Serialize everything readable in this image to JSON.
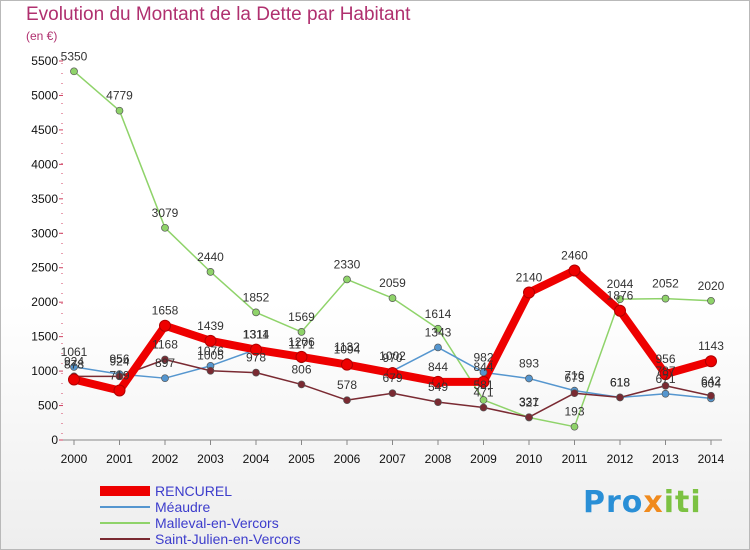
{
  "header": {
    "title": "Evolution du Montant de la Dette par Habitant",
    "unit": "(en €)"
  },
  "brand": {
    "logo_part1": "Pro",
    "logo_part2": "x",
    "logo_part3": "iti"
  },
  "chart_data": {
    "type": "line",
    "x": [
      "2000",
      "2001",
      "2002",
      "2003",
      "2004",
      "2005",
      "2006",
      "2007",
      "2008",
      "2009",
      "2010",
      "2011",
      "2012",
      "2013",
      "2014"
    ],
    "yticks": [
      "0",
      "500",
      "1000",
      "1500",
      "2000",
      "2500",
      "3000",
      "3500",
      "4000",
      "4500",
      "5000",
      "5500"
    ],
    "ylim": [
      0,
      5500
    ],
    "grid": false,
    "legend": "bottom-left",
    "series": [
      {
        "name": "RENCUREL",
        "color": "#ee0000",
        "values": [
          878,
          719,
          1658,
          1439,
          1311,
          1206,
          1094,
          970,
          844,
          844,
          2140,
          2460,
          1876,
          956,
          1143
        ],
        "labels": [
          "878",
          "719",
          "1658",
          "1439",
          "1311",
          "1206",
          "1094",
          "970",
          "844",
          "844",
          "2140",
          "2460",
          "1876",
          "956",
          "1143"
        ]
      },
      {
        "name": "Méaudre",
        "color": "#5596cf",
        "values": [
          1061,
          956,
          897,
          1076,
          1314,
          1171,
          1132,
          1002,
          1343,
          982,
          893,
          716,
          618,
          671,
          604
        ],
        "labels": [
          "1061",
          "956",
          "897",
          "1076",
          "1314",
          "1171",
          "1132",
          "1002",
          "1343",
          "982",
          "893",
          "716",
          "618",
          "671",
          "604"
        ]
      },
      {
        "name": "Malleval-en-Vercors",
        "color": "#8fd36a",
        "values": [
          5350,
          4779,
          3079,
          2440,
          1852,
          1569,
          2330,
          2059,
          1614,
          581,
          327,
          193,
          2044,
          2052,
          2020
        ],
        "labels": [
          "5350",
          "4779",
          "3079",
          "2440",
          "1852",
          "1569",
          "2330",
          "2059",
          "1614",
          "581",
          "327",
          "193",
          "2044",
          "2052",
          "2020"
        ]
      },
      {
        "name": "Saint-Julien-en-Vercors",
        "color": "#7a2a32",
        "values": [
          924,
          924,
          1168,
          1005,
          978,
          806,
          578,
          679,
          549,
          471,
          331,
          679,
          618,
          787,
          642
        ],
        "labels": [
          "924",
          "924",
          "1168",
          "1005",
          "978",
          "806",
          "578",
          "679",
          "549",
          "471",
          "331",
          "679",
          "618",
          "787",
          "642"
        ]
      }
    ]
  }
}
